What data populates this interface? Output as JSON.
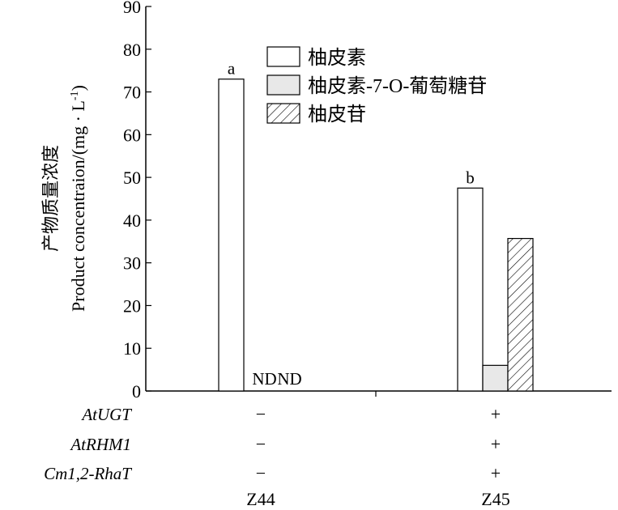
{
  "chart_data": {
    "type": "bar",
    "categories": [
      "Z44",
      "Z45"
    ],
    "series": [
      {
        "name": "柚皮素",
        "values": [
          73,
          47.5
        ],
        "pattern": "empty"
      },
      {
        "name": "柚皮素-7-O-葡萄糖苷",
        "values": [
          null,
          6
        ],
        "pattern": "gray"
      },
      {
        "name": "柚皮苷",
        "values": [
          null,
          35.7
        ],
        "pattern": "hatch"
      }
    ],
    "ylabel_cn": "产物质量浓度",
    "ylabel_en": "Product concentraion/(mg · L",
    "ylabel_sup": "-1",
    "ylabel_end": ")",
    "ylim": [
      0,
      90
    ],
    "yticks": [
      0,
      10,
      20,
      30,
      40,
      50,
      60,
      70,
      80,
      90
    ],
    "legend_position": "top-right",
    "colors": {
      "gray_fill": "#e8e8e8",
      "line": "#000000"
    },
    "annotations": [
      {
        "text": "a",
        "category": "Z44",
        "series": 0
      },
      {
        "text": "b",
        "category": "Z45",
        "series": 0
      },
      {
        "text": "ND",
        "category": "Z44",
        "series": 1
      },
      {
        "text": "ND",
        "category": "Z44",
        "series": 2
      }
    ]
  },
  "genotype_table": {
    "rows": [
      {
        "label": "AtUGT",
        "values": [
          "−",
          "+"
        ]
      },
      {
        "label": "AtRHM1",
        "values": [
          "−",
          "+"
        ]
      },
      {
        "label": "Cm1,2-RhaT",
        "values": [
          "−",
          "+"
        ]
      }
    ]
  }
}
